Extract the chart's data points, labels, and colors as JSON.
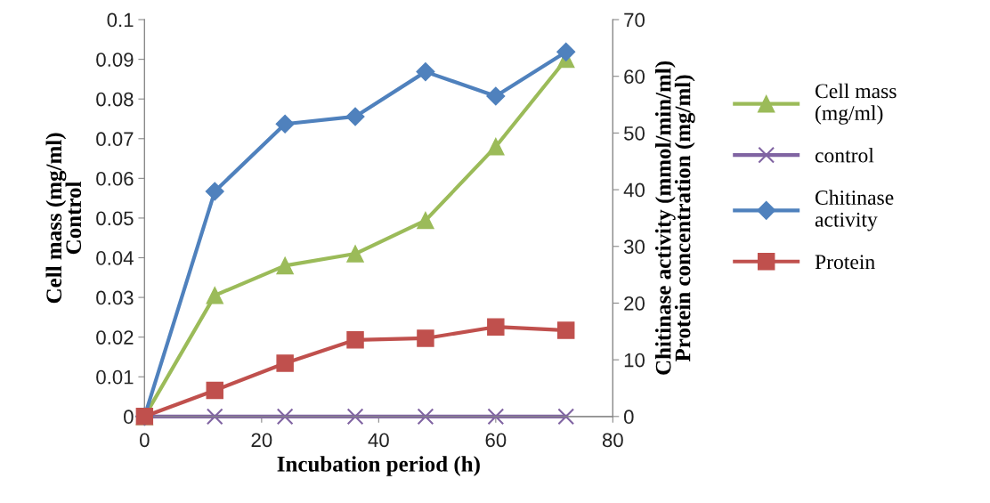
{
  "chart_data": {
    "type": "line",
    "xlabel": "Incubation period (h)",
    "ylabel": "Cell mass (mg/ml)\nControl",
    "y2label": "Chitinase activity (mmol/min/ml)\nProtein concentration (mg/ml)",
    "x": [
      0,
      12,
      24,
      36,
      48,
      60,
      72
    ],
    "series": [
      {
        "name": "Cell mass\n(mg/ml)",
        "color": "#9bbb59",
        "marker": "triangle",
        "values": [
          0,
          0.0305,
          0.038,
          0.041,
          0.0494,
          0.068,
          0.09
        ]
      },
      {
        "name": "control",
        "color": "#8064a2",
        "marker": "cross",
        "values": [
          0,
          0,
          0,
          0,
          0,
          0,
          0
        ]
      },
      {
        "name": "Chitinase\nactivity",
        "color": "#4f81bd",
        "marker": "diamond",
        "axis": "y2",
        "values": [
          0,
          39.7,
          51.6,
          52.9,
          60.8,
          56.5,
          64.3
        ]
      },
      {
        "name": "Protein",
        "color": "#c0504d",
        "marker": "square",
        "axis": "y2",
        "values": [
          0,
          4.6,
          9.4,
          13.5,
          13.8,
          15.8,
          15.2
        ]
      }
    ],
    "xlim": [
      0,
      80
    ],
    "xticks": [
      0,
      20,
      40,
      60,
      80
    ],
    "ylim": [
      0,
      0.1
    ],
    "yticks": [
      0,
      0.01,
      0.02,
      0.03,
      0.04,
      0.05,
      0.06,
      0.07,
      0.08,
      0.09,
      0.1
    ],
    "y2lim": [
      0,
      70
    ],
    "y2ticks": [
      0,
      10,
      20,
      30,
      40,
      50,
      60,
      70
    ],
    "grid": false,
    "legend": "right"
  }
}
